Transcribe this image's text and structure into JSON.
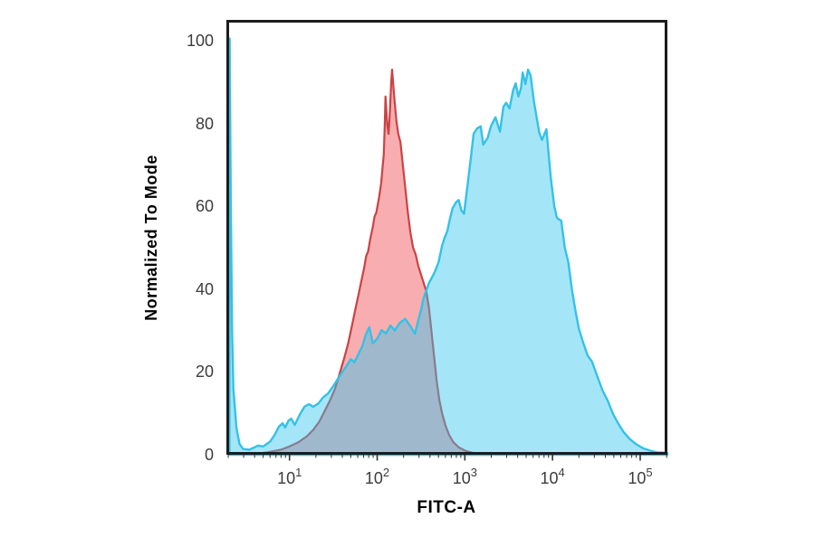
{
  "figure": {
    "background_color": "#FFFFFF",
    "plot_border_color": "#1C1C1C",
    "tick_mark_color": "#333333",
    "tick_label_color": "#3C3C3C",
    "axis_label_color": "#000000"
  },
  "chart_data": {
    "type": "area",
    "subtype": "flow-cytometry-histogram-overlay",
    "title": "",
    "xlabel": "FITC-A",
    "ylabel": "Normalized To Mode",
    "x_scale": "log10",
    "x_axis": {
      "range_log10": [
        0.28,
        5.31
      ],
      "tick_label_base": "10",
      "tick_exponents": [
        1,
        2,
        3,
        4,
        5
      ],
      "minor_ticks": true
    },
    "y_axis": {
      "range": [
        0,
        105
      ],
      "ticks": [
        0,
        20,
        40,
        60,
        80,
        100
      ]
    },
    "grid": false,
    "legend": "none",
    "series": [
      {
        "name": "red-histogram",
        "fill": "#F8AEB0",
        "stroke": "#CC4244",
        "stroke_width": 2.2,
        "points_log10x_y": [
          [
            0.6,
            0.2
          ],
          [
            0.75,
            0.6
          ],
          [
            0.9,
            1.2
          ],
          [
            1.0,
            2.0
          ],
          [
            1.1,
            3.0
          ],
          [
            1.2,
            4.5
          ],
          [
            1.27,
            6.0
          ],
          [
            1.34,
            8.0
          ],
          [
            1.4,
            10.5
          ],
          [
            1.46,
            13.0
          ],
          [
            1.52,
            16.0
          ],
          [
            1.57,
            19.5
          ],
          [
            1.62,
            23.0
          ],
          [
            1.67,
            27.0
          ],
          [
            1.71,
            31.0
          ],
          [
            1.75,
            35.0
          ],
          [
            1.79,
            39.0
          ],
          [
            1.82,
            42.0
          ],
          [
            1.85,
            45.0
          ],
          [
            1.875,
            48.0
          ],
          [
            1.895,
            49.0
          ],
          [
            1.92,
            52.0
          ],
          [
            1.95,
            55.0
          ],
          [
            1.97,
            57.5
          ],
          [
            1.99,
            58.5
          ],
          [
            2.02,
            62.0
          ],
          [
            2.045,
            65.5
          ],
          [
            2.06,
            69.0
          ],
          [
            2.075,
            72.5
          ],
          [
            2.085,
            79.0
          ],
          [
            2.095,
            86.5
          ],
          [
            2.105,
            83.0
          ],
          [
            2.115,
            79.5
          ],
          [
            2.13,
            77.5
          ],
          [
            2.145,
            83.0
          ],
          [
            2.16,
            90.0
          ],
          [
            2.17,
            93.0
          ],
          [
            2.185,
            89.0
          ],
          [
            2.2,
            85.0
          ],
          [
            2.22,
            80.5
          ],
          [
            2.24,
            77.5
          ],
          [
            2.265,
            75.5
          ],
          [
            2.29,
            70.5
          ],
          [
            2.32,
            64.5
          ],
          [
            2.35,
            58.5
          ],
          [
            2.38,
            53.5
          ],
          [
            2.41,
            50.0
          ],
          [
            2.44,
            48.3
          ],
          [
            2.47,
            45.5
          ],
          [
            2.5,
            43.5
          ],
          [
            2.53,
            41.5
          ],
          [
            2.56,
            39.5
          ],
          [
            2.59,
            35.5
          ],
          [
            2.62,
            29.5
          ],
          [
            2.65,
            23.5
          ],
          [
            2.68,
            17.5
          ],
          [
            2.71,
            13.0
          ],
          [
            2.74,
            10.0
          ],
          [
            2.78,
            7.0
          ],
          [
            2.82,
            4.8
          ],
          [
            2.87,
            3.0
          ],
          [
            2.93,
            1.8
          ],
          [
            3.0,
            1.0
          ],
          [
            3.08,
            0.5
          ],
          [
            3.18,
            0.2
          ],
          [
            3.3,
            0.0
          ]
        ]
      },
      {
        "name": "blue-histogram",
        "fill": "rgba(47,197,236,0.44)",
        "stroke": "#35C1E6",
        "stroke_width": 2.4,
        "points_log10x_y": [
          [
            0.315,
            0.5
          ],
          [
            0.317,
            100.5
          ],
          [
            0.33,
            62.0
          ],
          [
            0.345,
            30.0
          ],
          [
            0.36,
            16.0
          ],
          [
            0.395,
            6.5
          ],
          [
            0.43,
            2.6
          ],
          [
            0.47,
            1.4
          ],
          [
            0.54,
            1.2
          ],
          [
            0.6,
            1.8
          ],
          [
            0.64,
            2.2
          ],
          [
            0.7,
            2.0
          ],
          [
            0.74,
            2.6
          ],
          [
            0.78,
            3.2
          ],
          [
            0.83,
            4.8
          ],
          [
            0.88,
            6.8
          ],
          [
            0.92,
            7.6
          ],
          [
            0.95,
            6.6
          ],
          [
            0.99,
            8.3
          ],
          [
            1.02,
            8.7
          ],
          [
            1.06,
            7.2
          ],
          [
            1.12,
            9.8
          ],
          [
            1.17,
            11.6
          ],
          [
            1.22,
            12.2
          ],
          [
            1.27,
            11.6
          ],
          [
            1.33,
            12.4
          ],
          [
            1.38,
            13.8
          ],
          [
            1.44,
            14.8
          ],
          [
            1.5,
            16.6
          ],
          [
            1.56,
            18.6
          ],
          [
            1.6,
            19.9
          ],
          [
            1.65,
            21.4
          ],
          [
            1.7,
            23.1
          ],
          [
            1.74,
            22.3
          ],
          [
            1.79,
            24.5
          ],
          [
            1.83,
            26.2
          ],
          [
            1.87,
            29.0
          ],
          [
            1.91,
            30.8
          ],
          [
            1.95,
            26.9
          ],
          [
            2.0,
            28.0
          ],
          [
            2.05,
            30.1
          ],
          [
            2.1,
            29.3
          ],
          [
            2.15,
            31.2
          ],
          [
            2.2,
            30.0
          ],
          [
            2.26,
            31.9
          ],
          [
            2.32,
            32.8
          ],
          [
            2.38,
            31.0
          ],
          [
            2.43,
            29.2
          ],
          [
            2.47,
            32.5
          ],
          [
            2.5,
            34.9
          ],
          [
            2.53,
            37.8
          ],
          [
            2.57,
            40.2
          ],
          [
            2.59,
            41.5
          ],
          [
            2.63,
            43.0
          ],
          [
            2.66,
            44.3
          ],
          [
            2.7,
            46.5
          ],
          [
            2.74,
            50.5
          ],
          [
            2.77,
            52.5
          ],
          [
            2.8,
            54.0
          ],
          [
            2.83,
            57.0
          ],
          [
            2.86,
            59.5
          ],
          [
            2.9,
            61.0
          ],
          [
            2.93,
            61.5
          ],
          [
            2.96,
            59.0
          ],
          [
            2.99,
            58.2
          ],
          [
            3.03,
            65.0
          ],
          [
            3.07,
            72.0
          ],
          [
            3.1,
            77.5
          ],
          [
            3.14,
            78.8
          ],
          [
            3.18,
            79.3
          ],
          [
            3.21,
            74.9
          ],
          [
            3.26,
            76.5
          ],
          [
            3.3,
            79.5
          ],
          [
            3.35,
            81.5
          ],
          [
            3.4,
            78.0
          ],
          [
            3.44,
            84.0
          ],
          [
            3.47,
            85.0
          ],
          [
            3.51,
            83.6
          ],
          [
            3.55,
            88.0
          ],
          [
            3.58,
            89.7
          ],
          [
            3.61,
            86.5
          ],
          [
            3.64,
            88.5
          ],
          [
            3.66,
            92.3
          ],
          [
            3.69,
            89.5
          ],
          [
            3.72,
            93.0
          ],
          [
            3.75,
            91.5
          ],
          [
            3.79,
            85.0
          ],
          [
            3.85,
            77.7
          ],
          [
            3.88,
            76.0
          ],
          [
            3.93,
            78.6
          ],
          [
            3.98,
            67.0
          ],
          [
            4.02,
            60.0
          ],
          [
            4.05,
            57.2
          ],
          [
            4.1,
            56.5
          ],
          [
            4.14,
            50.0
          ],
          [
            4.18,
            46.5
          ],
          [
            4.22,
            40.0
          ],
          [
            4.26,
            35.0
          ],
          [
            4.3,
            30.5
          ],
          [
            4.35,
            27.0
          ],
          [
            4.4,
            24.0
          ],
          [
            4.45,
            22.5
          ],
          [
            4.51,
            19.0
          ],
          [
            4.57,
            15.5
          ],
          [
            4.63,
            13.0
          ],
          [
            4.69,
            9.8
          ],
          [
            4.75,
            7.5
          ],
          [
            4.81,
            5.5
          ],
          [
            4.88,
            3.8
          ],
          [
            4.95,
            2.6
          ],
          [
            5.03,
            1.6
          ],
          [
            5.11,
            1.0
          ],
          [
            5.19,
            0.6
          ],
          [
            5.27,
            0.5
          ],
          [
            5.31,
            0.4
          ]
        ]
      }
    ]
  }
}
